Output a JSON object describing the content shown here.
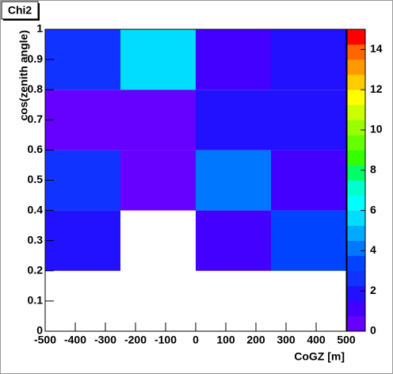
{
  "chart_data": {
    "type": "heatmap",
    "title": "Chi2",
    "x_label": "CoGZ [m]",
    "y_label": "cos(zenith angle)",
    "x_edges": [
      -500,
      -250,
      0,
      250,
      500
    ],
    "y_edges": [
      0,
      0.2,
      0.4,
      0.6,
      0.8,
      1
    ],
    "z": [
      [
        null,
        null,
        null,
        null
      ],
      [
        2.1,
        null,
        1.3,
        3.0
      ],
      [
        2.9,
        0.6,
        4.2,
        0.9
      ],
      [
        0.4,
        0.5,
        1.8,
        1.9
      ],
      [
        2.3,
        5.6,
        1.2,
        1.9
      ]
    ],
    "xlim": [
      -500,
      500
    ],
    "xticks": [
      -500,
      -400,
      -300,
      -200,
      -100,
      0,
      100,
      200,
      300,
      400,
      500
    ],
    "ylim": [
      0,
      1
    ],
    "yticks": [
      0,
      0.1,
      0.2,
      0.3,
      0.4,
      0.5,
      0.6,
      0.7,
      0.8,
      0.9,
      1
    ],
    "zlim": [
      0,
      15
    ],
    "zticks": [
      0,
      2,
      4,
      6,
      8,
      10,
      12,
      14
    ],
    "palette": [
      "#6600ff",
      "#4400ff",
      "#2211ff",
      "#1133ff",
      "#0044ff",
      "#0077ff",
      "#00aaff",
      "#00ddff",
      "#00ffff",
      "#00ffcc",
      "#00ff66",
      "#33ff00",
      "#66ff00",
      "#99ff00",
      "#ccff00",
      "#ffff00",
      "#ffcc00",
      "#ff9900",
      "#ff6600",
      "#ff0000"
    ]
  }
}
